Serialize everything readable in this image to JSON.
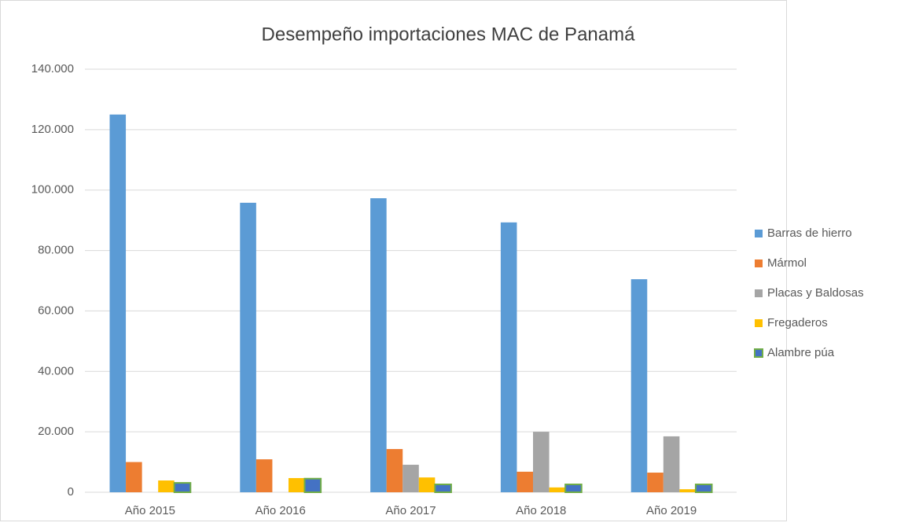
{
  "chart_data": {
    "type": "bar",
    "title": "Desempeño importaciones MAC de Panamá",
    "categories": [
      "Año 2015",
      "Año 2016",
      "Año 2017",
      "Año 2018",
      "Año 2019"
    ],
    "series": [
      {
        "name": "Barras de hierro",
        "color": "#5b9bd5",
        "values": [
          125000,
          95800,
          97300,
          89300,
          70500
        ]
      },
      {
        "name": "Mármol",
        "color": "#ed7d31",
        "values": [
          10000,
          10900,
          14300,
          6800,
          6500
        ]
      },
      {
        "name": "Placas y Baldosas",
        "color": "#a5a5a5",
        "values": [
          0,
          0,
          9100,
          20000,
          18500
        ]
      },
      {
        "name": "Fregaderos",
        "color": "#ffc000",
        "values": [
          3900,
          4700,
          4900,
          1600,
          1000
        ]
      },
      {
        "name": "Alambre púa",
        "color": "#4472c4",
        "stroke": "#70ad47",
        "values": [
          3100,
          4500,
          2600,
          2600,
          2600
        ]
      }
    ],
    "ylim": [
      0,
      140000
    ],
    "yticks": [
      0,
      {
        "value": 20000,
        "label": "20.000"
      },
      {
        "value": 40000,
        "label": "40.000"
      },
      {
        "value": 60000,
        "label": "60.000"
      },
      {
        "value": 80000,
        "label": "80.000"
      },
      {
        "value": 100000,
        "label": "100.000"
      },
      {
        "value": 120000,
        "label": "120.000"
      },
      {
        "value": 140000,
        "label": "140.000"
      }
    ],
    "grid": true,
    "legend": "right"
  }
}
